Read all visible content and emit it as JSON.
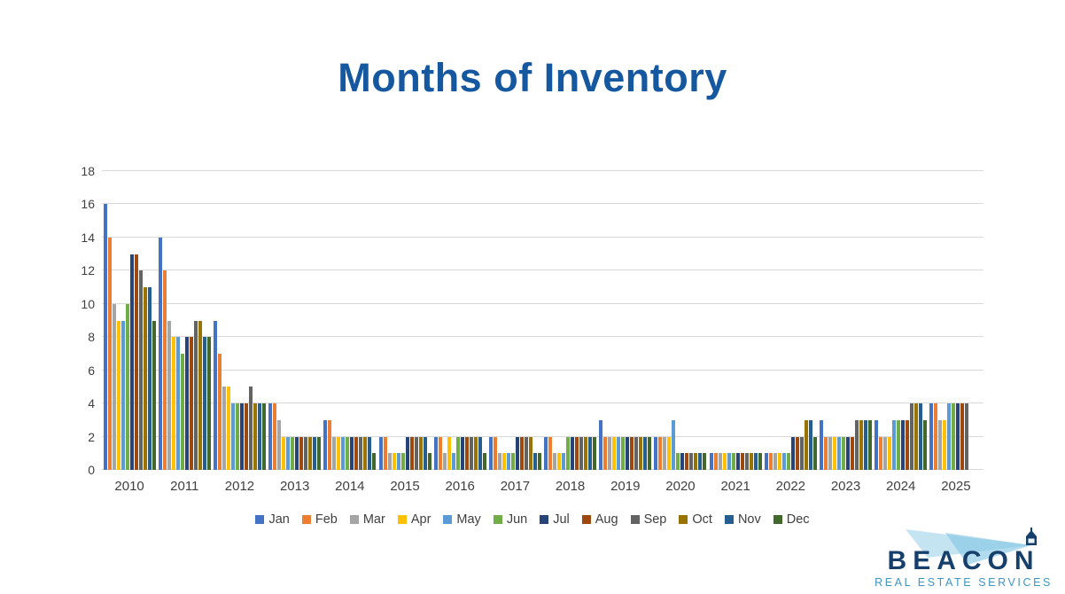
{
  "page": {
    "title": "Months of Inventory"
  },
  "colors": {
    "title_text": "#1658A0",
    "axis_text": "#404040",
    "gridline": "#D9D9D9",
    "background": "#FFFFFF"
  },
  "chart_data": {
    "type": "bar",
    "title": "Months of Inventory",
    "categories": [
      "2010",
      "2011",
      "2012",
      "2013",
      "2014",
      "2015",
      "2016",
      "2017",
      "2018",
      "2019",
      "2020",
      "2021",
      "2022",
      "2023",
      "2024",
      "2025"
    ],
    "series": [
      {
        "name": "Jan",
        "color": "#4472C4",
        "values": [
          16,
          14,
          9,
          4,
          3,
          2,
          2,
          2,
          2,
          3,
          2,
          1,
          1,
          3,
          3,
          4
        ]
      },
      {
        "name": "Feb",
        "color": "#ED7D31",
        "values": [
          14,
          12,
          7,
          4,
          3,
          2,
          2,
          2,
          2,
          2,
          2,
          1,
          1,
          2,
          2,
          4
        ]
      },
      {
        "name": "Mar",
        "color": "#A5A5A5",
        "values": [
          10,
          9,
          5,
          3,
          2,
          1,
          1,
          1,
          1,
          2,
          2,
          1,
          1,
          2,
          2,
          3
        ]
      },
      {
        "name": "Apr",
        "color": "#FFC000",
        "values": [
          9,
          8,
          5,
          2,
          2,
          1,
          2,
          1,
          1,
          2,
          2,
          1,
          1,
          2,
          2,
          3
        ]
      },
      {
        "name": "May",
        "color": "#5B9BD5",
        "values": [
          9,
          8,
          4,
          2,
          2,
          1,
          1,
          1,
          1,
          2,
          3,
          1,
          1,
          2,
          3,
          4
        ]
      },
      {
        "name": "Jun",
        "color": "#70AD47",
        "values": [
          10,
          7,
          4,
          2,
          2,
          1,
          2,
          1,
          2,
          2,
          1,
          1,
          1,
          2,
          3,
          4
        ]
      },
      {
        "name": "Jul",
        "color": "#264478",
        "values": [
          13,
          8,
          4,
          2,
          2,
          2,
          2,
          2,
          2,
          2,
          1,
          1,
          2,
          2,
          3,
          4
        ]
      },
      {
        "name": "Aug",
        "color": "#9E480E",
        "values": [
          13,
          8,
          4,
          2,
          2,
          2,
          2,
          2,
          2,
          2,
          1,
          1,
          2,
          2,
          3,
          4
        ]
      },
      {
        "name": "Sep",
        "color": "#636363",
        "values": [
          12,
          9,
          5,
          2,
          2,
          2,
          2,
          2,
          2,
          2,
          1,
          1,
          2,
          3,
          4,
          4
        ]
      },
      {
        "name": "Oct",
        "color": "#997300",
        "values": [
          11,
          9,
          4,
          2,
          2,
          2,
          2,
          2,
          2,
          2,
          1,
          1,
          3,
          3,
          4,
          null
        ]
      },
      {
        "name": "Nov",
        "color": "#255E91",
        "values": [
          11,
          8,
          4,
          2,
          2,
          2,
          2,
          1,
          2,
          2,
          1,
          1,
          3,
          3,
          4,
          null
        ]
      },
      {
        "name": "Dec",
        "color": "#43682B",
        "values": [
          9,
          8,
          4,
          2,
          1,
          1,
          1,
          1,
          2,
          2,
          1,
          1,
          2,
          3,
          3,
          null
        ]
      }
    ],
    "ylim": [
      0,
      18
    ],
    "yticks": [
      0,
      2,
      4,
      6,
      8,
      10,
      12,
      14,
      16,
      18
    ],
    "grid": true,
    "legend_position": "bottom"
  },
  "logo": {
    "name": "BEACON",
    "tagline": "REAL ESTATE SERVICES",
    "name_color": "#16406B",
    "tagline_color": "#3E96C5",
    "beam_color": "#7FC4E3"
  }
}
